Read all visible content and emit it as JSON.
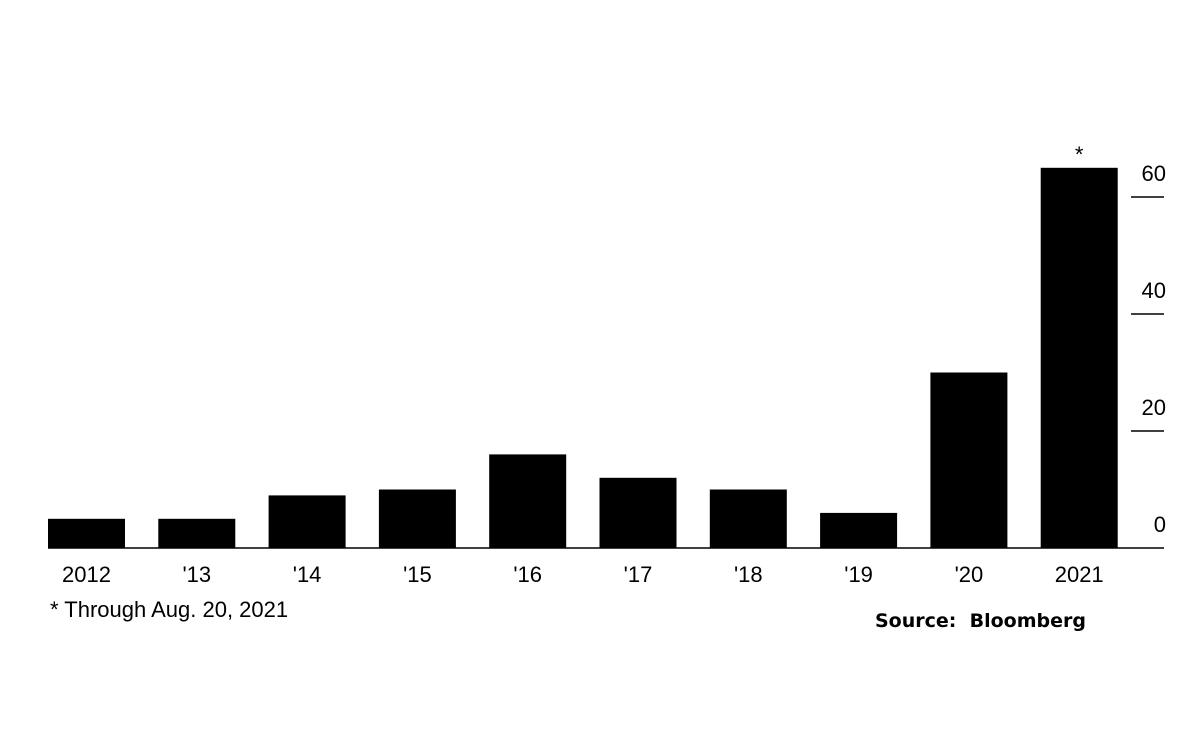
{
  "chart_data": {
    "type": "bar",
    "categories": [
      "2012",
      "'13",
      "'14",
      "'15",
      "'16",
      "'17",
      "'18",
      "'19",
      "'20",
      "2021"
    ],
    "values": [
      5,
      5,
      9,
      10,
      16,
      12,
      10,
      6,
      30,
      65
    ],
    "ylim": [
      0,
      65
    ],
    "yticks": [
      "0",
      "20",
      "40",
      "60"
    ],
    "ytick_values": [
      0,
      20,
      40,
      60
    ],
    "y_axis_side": "right",
    "grid": false,
    "annotations": [
      {
        "category": "2021",
        "text": "*"
      }
    ],
    "bar_color": "#000000"
  },
  "footnote": "* Through Aug. 20, 2021",
  "source": "Source:  Bloomberg"
}
